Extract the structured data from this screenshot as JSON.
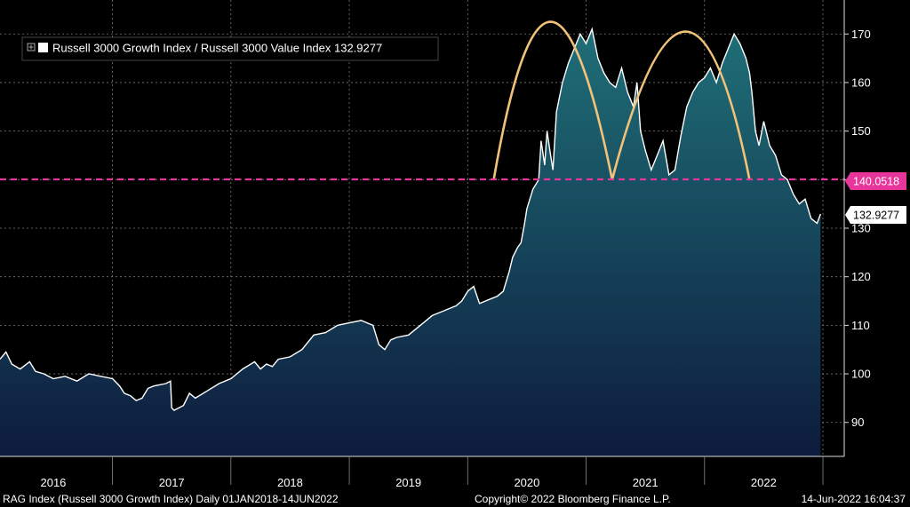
{
  "legend": {
    "label": "Russell 3000 Growth Index / Russell 3000 Value Index 132.9277",
    "icon": "plus-box-icon"
  },
  "last_value_tag": "132.9277",
  "threshold_tag": "140.0518",
  "footer": {
    "left": "RAG Index (Russell 3000 Growth Index)  Daily 01JAN2018-14JUN2022",
    "center": "Copyright© 2022 Bloomberg Finance L.P.",
    "right": "14-Jun-2022 16:04:37"
  },
  "colors": {
    "background": "#000000",
    "line": "#ffffff",
    "area_top": "#1f6f78",
    "area_bottom": "#0d1b3d",
    "threshold": "#e8359a",
    "arcs": "#f2c27a",
    "grid": "#7a7a7a"
  },
  "chart_data": {
    "type": "area",
    "title": "Russell 3000 Growth Index / Russell 3000 Value Index",
    "ylim": [
      83,
      177
    ],
    "yticks": [
      90,
      100,
      110,
      120,
      130,
      140,
      150,
      160,
      170
    ],
    "xlim": [
      2015.55,
      2022.68
    ],
    "x_tick_labels": [
      "2016",
      "2017",
      "2018",
      "2019",
      "2020",
      "2021",
      "2022"
    ],
    "x_tick_positions": [
      2016.0,
      2017.0,
      2018.0,
      2019.0,
      2020.0,
      2021.0,
      2022.0
    ],
    "reference_line": {
      "value": 140.0518,
      "style": "dashed"
    },
    "last_value": 132.9277,
    "arcs": [
      {
        "x": [
          2019.72,
          2020.18,
          2020.72
        ],
        "peak": 172.5,
        "base": 140.0
      },
      {
        "x": [
          2020.72,
          2021.38,
          2021.88
        ],
        "peak": 170.5,
        "base": 140.0
      }
    ],
    "series": [
      {
        "name": "Russell 3000 Growth Index / Russell 3000 Value Index",
        "points": [
          [
            2015.55,
            103
          ],
          [
            2015.6,
            104.5
          ],
          [
            2015.65,
            102
          ],
          [
            2015.72,
            101
          ],
          [
            2015.8,
            102.5
          ],
          [
            2015.85,
            100.5
          ],
          [
            2015.92,
            100
          ],
          [
            2016.0,
            99
          ],
          [
            2016.1,
            99.5
          ],
          [
            2016.2,
            98.5
          ],
          [
            2016.3,
            100
          ],
          [
            2016.4,
            99.5
          ],
          [
            2016.5,
            99
          ],
          [
            2016.56,
            97.5
          ],
          [
            2016.6,
            96
          ],
          [
            2016.65,
            95.5
          ],
          [
            2016.7,
            94.5
          ],
          [
            2016.75,
            95
          ],
          [
            2016.8,
            97
          ],
          [
            2016.85,
            97.5
          ],
          [
            2016.95,
            98
          ],
          [
            2016.99,
            98.5
          ],
          [
            2017.0,
            93
          ],
          [
            2017.02,
            92.5
          ],
          [
            2017.1,
            93.5
          ],
          [
            2017.15,
            96
          ],
          [
            2017.2,
            95
          ],
          [
            2017.3,
            96.5
          ],
          [
            2017.4,
            98
          ],
          [
            2017.5,
            99
          ],
          [
            2017.6,
            101
          ],
          [
            2017.7,
            102.5
          ],
          [
            2017.75,
            101
          ],
          [
            2017.8,
            102
          ],
          [
            2017.85,
            101.5
          ],
          [
            2017.9,
            103
          ],
          [
            2018.0,
            103.5
          ],
          [
            2018.1,
            105
          ],
          [
            2018.2,
            108
          ],
          [
            2018.3,
            108.5
          ],
          [
            2018.4,
            110
          ],
          [
            2018.5,
            110.5
          ],
          [
            2018.6,
            111
          ],
          [
            2018.7,
            110
          ],
          [
            2018.75,
            106
          ],
          [
            2018.8,
            105
          ],
          [
            2018.85,
            107
          ],
          [
            2018.9,
            107.5
          ],
          [
            2019.0,
            108
          ],
          [
            2019.1,
            110
          ],
          [
            2019.2,
            112
          ],
          [
            2019.3,
            113
          ],
          [
            2019.4,
            114
          ],
          [
            2019.45,
            115
          ],
          [
            2019.5,
            117
          ],
          [
            2019.55,
            118
          ],
          [
            2019.6,
            114.5
          ],
          [
            2019.65,
            115
          ],
          [
            2019.7,
            115.5
          ],
          [
            2019.75,
            116
          ],
          [
            2019.8,
            117
          ],
          [
            2019.85,
            121
          ],
          [
            2019.88,
            124
          ],
          [
            2019.92,
            126
          ],
          [
            2019.95,
            127
          ],
          [
            2019.98,
            131
          ],
          [
            2020.0,
            134
          ],
          [
            2020.05,
            138
          ],
          [
            2020.1,
            140
          ],
          [
            2020.12,
            148
          ],
          [
            2020.15,
            143
          ],
          [
            2020.17,
            150
          ],
          [
            2020.2,
            145
          ],
          [
            2020.22,
            142
          ],
          [
            2020.25,
            154
          ],
          [
            2020.3,
            160
          ],
          [
            2020.35,
            164
          ],
          [
            2020.4,
            167
          ],
          [
            2020.45,
            170
          ],
          [
            2020.5,
            168
          ],
          [
            2020.55,
            171
          ],
          [
            2020.6,
            165
          ],
          [
            2020.65,
            162
          ],
          [
            2020.7,
            160
          ],
          [
            2020.75,
            159
          ],
          [
            2020.8,
            163
          ],
          [
            2020.85,
            158
          ],
          [
            2020.9,
            155
          ],
          [
            2020.93,
            160
          ],
          [
            2020.96,
            150
          ],
          [
            2021.0,
            146
          ],
          [
            2021.05,
            142
          ],
          [
            2021.1,
            145
          ],
          [
            2021.15,
            148
          ],
          [
            2021.2,
            141
          ],
          [
            2021.25,
            142
          ],
          [
            2021.3,
            149
          ],
          [
            2021.35,
            155
          ],
          [
            2021.4,
            158
          ],
          [
            2021.45,
            160
          ],
          [
            2021.5,
            161
          ],
          [
            2021.55,
            163
          ],
          [
            2021.6,
            160
          ],
          [
            2021.65,
            164
          ],
          [
            2021.7,
            167
          ],
          [
            2021.75,
            170
          ],
          [
            2021.8,
            168
          ],
          [
            2021.85,
            165
          ],
          [
            2021.88,
            162
          ],
          [
            2021.9,
            158
          ],
          [
            2021.93,
            150
          ],
          [
            2021.96,
            147
          ],
          [
            2022.0,
            152
          ],
          [
            2022.05,
            147
          ],
          [
            2022.1,
            145
          ],
          [
            2022.15,
            141
          ],
          [
            2022.2,
            140
          ],
          [
            2022.25,
            137
          ],
          [
            2022.3,
            135
          ],
          [
            2022.35,
            136
          ],
          [
            2022.4,
            132
          ],
          [
            2022.45,
            131
          ],
          [
            2022.48,
            132.9277
          ]
        ]
      }
    ]
  }
}
